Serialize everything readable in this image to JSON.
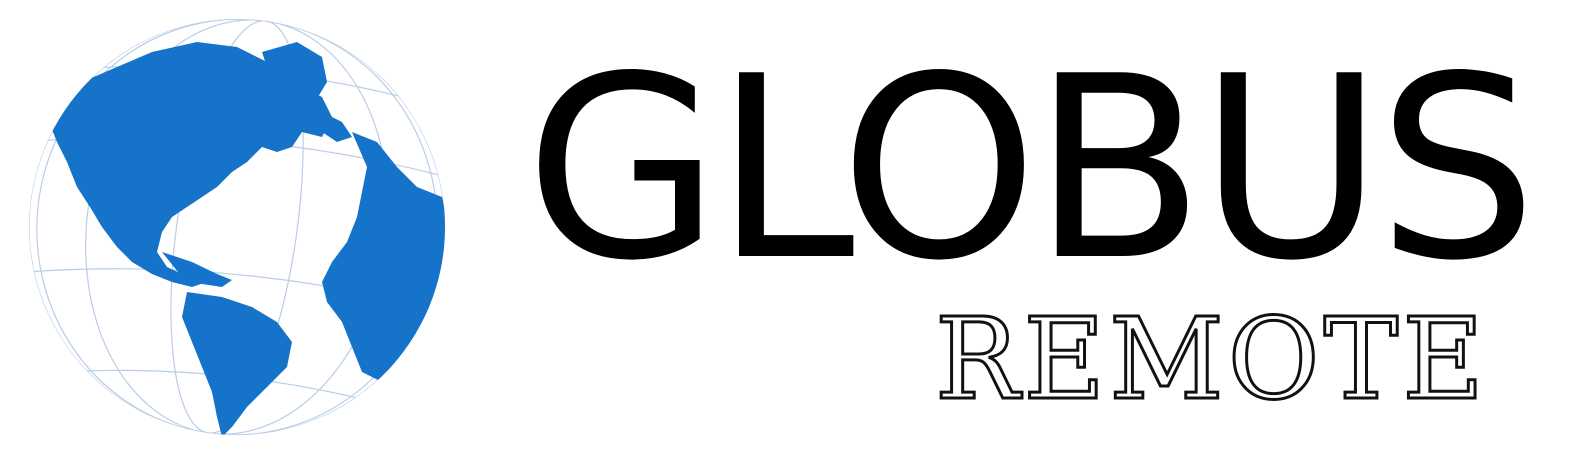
{
  "brand": {
    "name": "GLOBUS",
    "subtitle": "REMOTE"
  },
  "colors": {
    "globe_land": "#1574ca",
    "globe_grid": "#b9cde8",
    "text": "#000000"
  },
  "icons": {
    "logo_mark": "globe-icon"
  }
}
